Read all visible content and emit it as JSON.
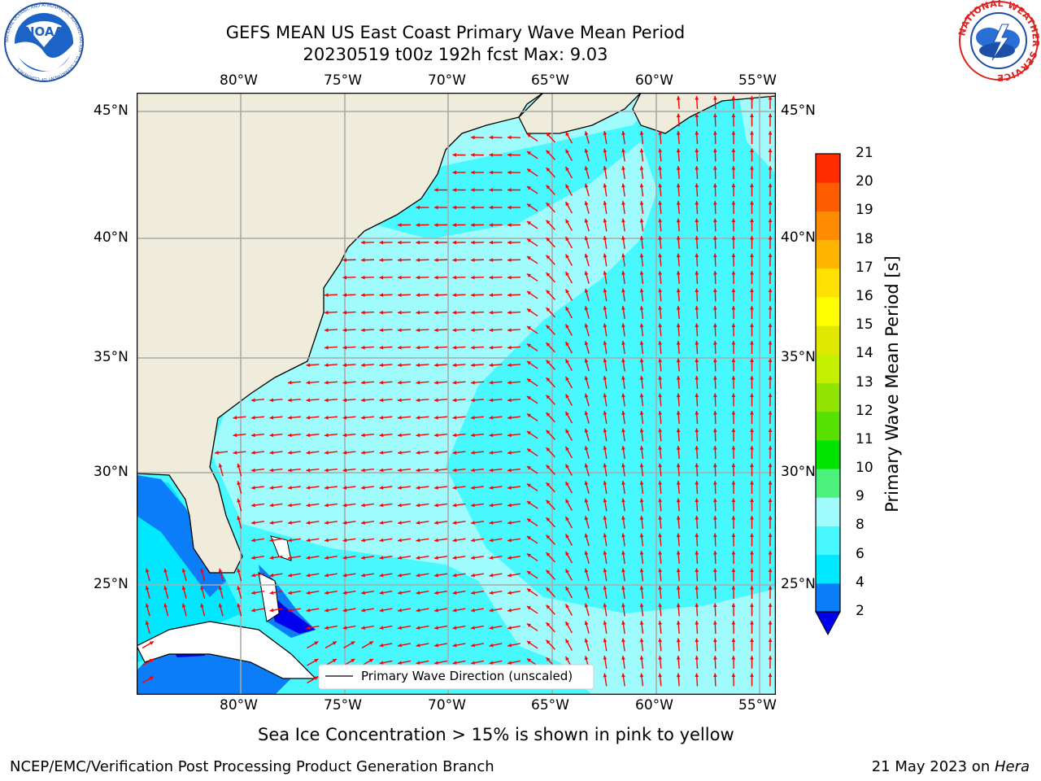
{
  "title": {
    "line1": "GEFS MEAN US East Coast Primary Wave Mean Period",
    "line2": "20230519 t00z 192h fcst   Max: 9.03"
  },
  "map": {
    "lon_ticks": [
      "80°W",
      "75°W",
      "70°W",
      "65°W",
      "60°W",
      "55°W"
    ],
    "lat_ticks": [
      "45°N",
      "40°N",
      "35°N",
      "30°N",
      "25°N"
    ],
    "legend_label": "Primary Wave Direction (unscaled)",
    "arrow_color": "#ff0000",
    "land_color": "#efecdc"
  },
  "colorbar": {
    "label": "Primary Wave Mean Period [s]",
    "ticks": [
      "2",
      "4",
      "6",
      "8",
      "9",
      "10",
      "11",
      "12",
      "13",
      "14",
      "15",
      "16",
      "17",
      "18",
      "19",
      "20",
      "21"
    ],
    "colors": [
      "#0b7df8",
      "#00e8ff",
      "#48f8ff",
      "#a0fcfc",
      "#4cf07c",
      "#00e400",
      "#58e000",
      "#90e400",
      "#c4f000",
      "#e0e800",
      "#ffff00",
      "#ffe000",
      "#ffb400",
      "#ff8c00",
      "#ff5c00",
      "#ff2c00",
      "#ff0000"
    ],
    "under_color": "#0000ee"
  },
  "caption": "Sea Ice Concentration > 15% is shown in pink to yellow",
  "footer": {
    "left": "NCEP/EMC/Verification Post Processing Product Generation Branch",
    "right_date": "21 May 2023 on ",
    "right_host": "Hera"
  },
  "logos": {
    "noaa_text": "NOAA",
    "noaa_ring": "NATIONAL OCEANIC AND ATMOSPHERIC ADMINISTRATION · U.S. DEPARTMENT OF COMMERCE",
    "nws_ring": "NATIONAL WEATHER SERVICE"
  }
}
